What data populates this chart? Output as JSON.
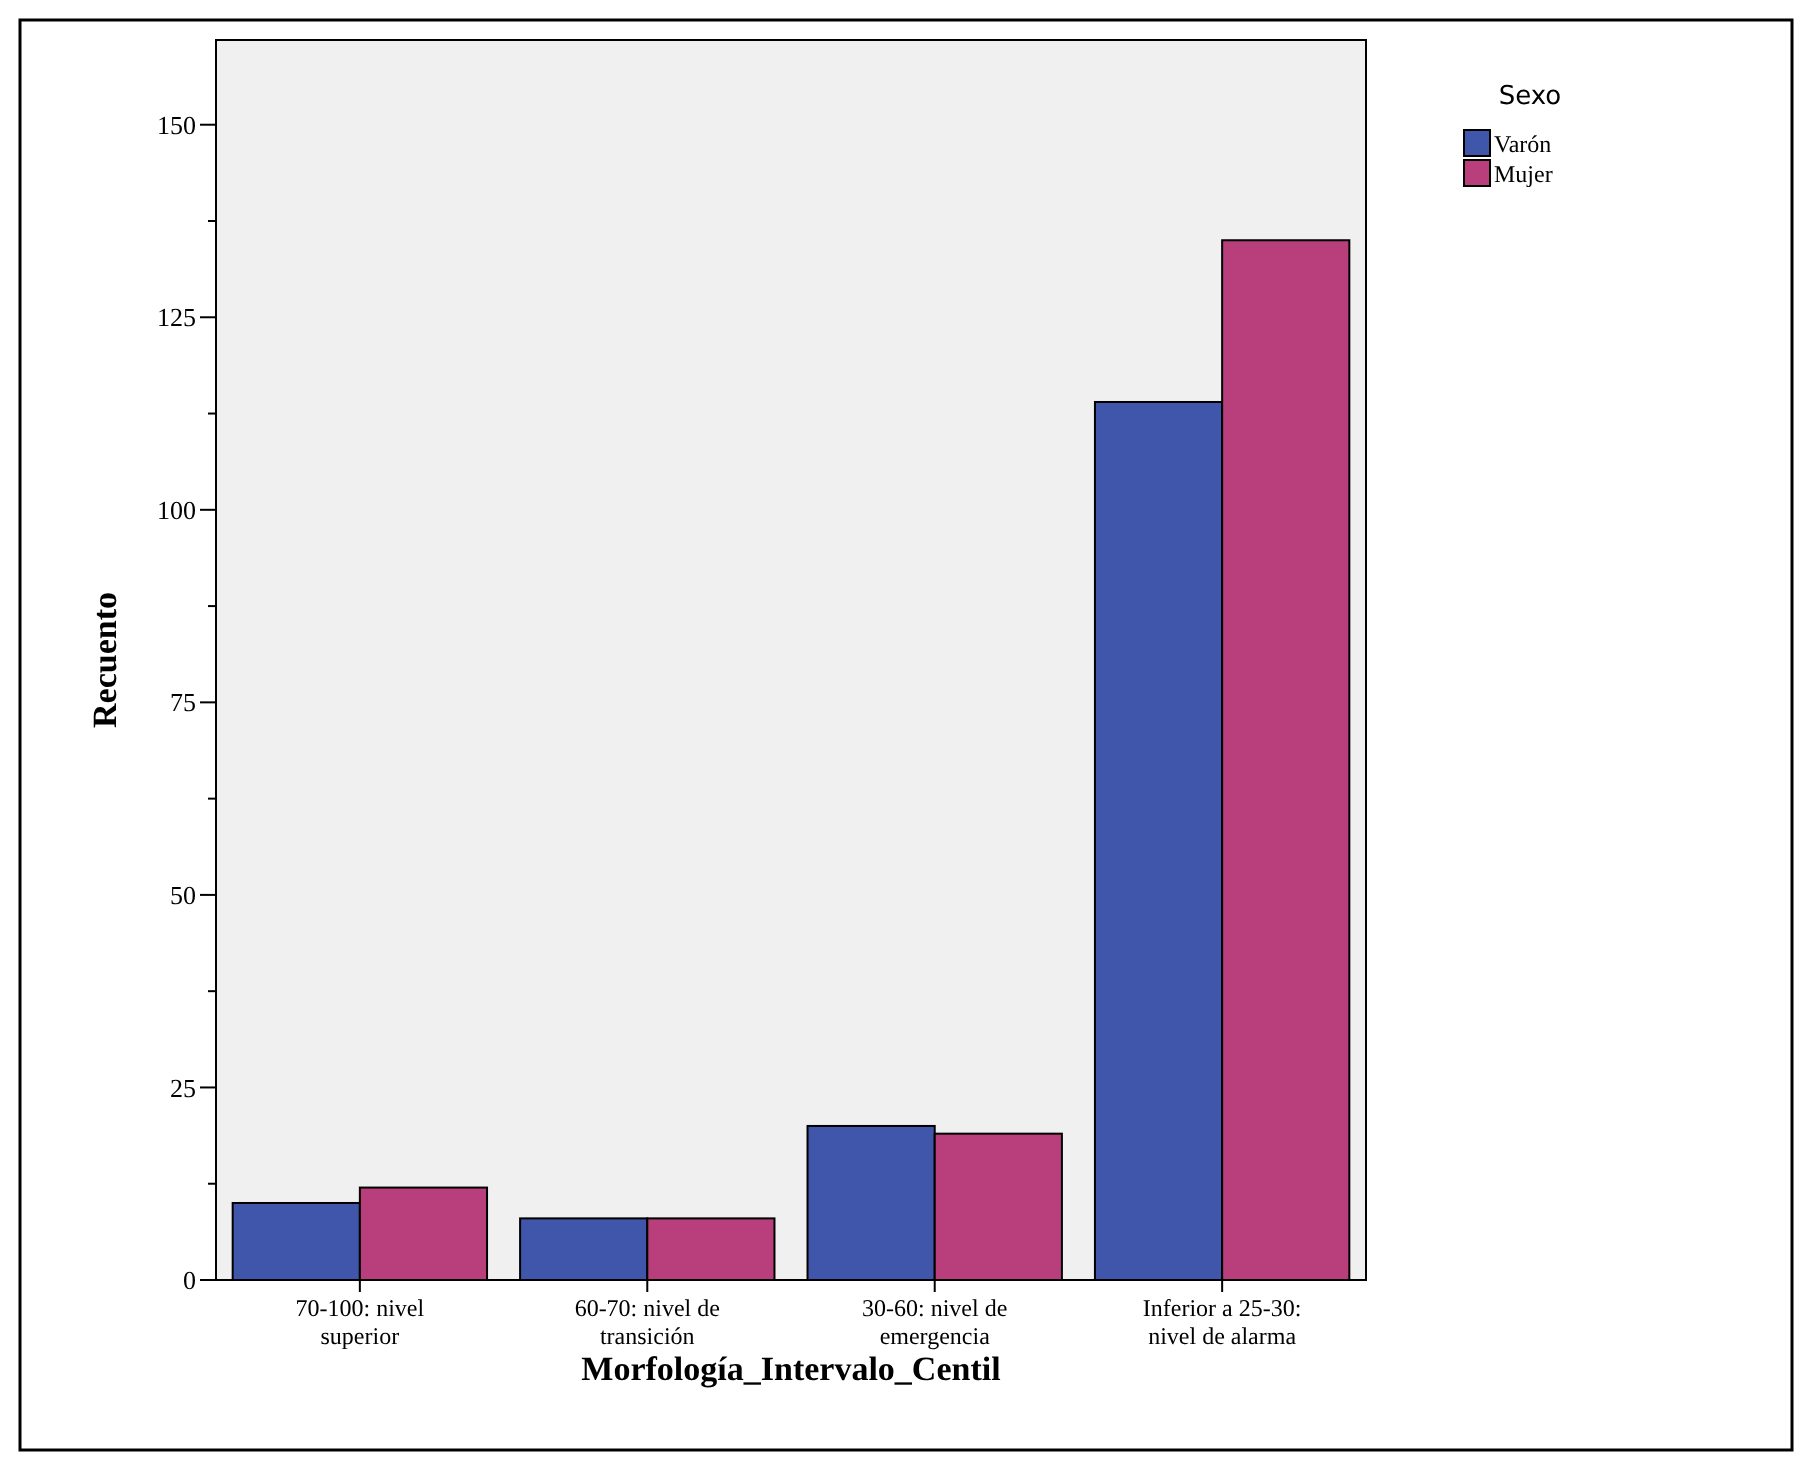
{
  "chart_data": {
    "type": "bar",
    "xlabel": "Morfología_Intervalo_Centil",
    "ylabel": "Recuento",
    "legend_title": "Sexo",
    "categories": [
      "70-100: nivel superior",
      "60-70: nivel de transición",
      "30-60: nivel de emergencia",
      "Inferior a 25-30: nivel de alarma"
    ],
    "series": [
      {
        "name": "Varón",
        "color": "#3f56aa",
        "values": [
          10,
          8,
          20,
          114
        ]
      },
      {
        "name": "Mujer",
        "color": "#b93e7c",
        "values": [
          12,
          8,
          19,
          135
        ]
      }
    ],
    "ylim": [
      0,
      161
    ],
    "yticks": [
      0,
      {
        "value": 12.5,
        "label": null
      },
      25,
      {
        "value": 37.5,
        "label": null
      },
      50,
      {
        "value": 62.5,
        "label": null
      },
      75,
      {
        "value": 87.5,
        "label": null
      },
      100,
      {
        "value": 112.5,
        "label": null
      },
      125,
      {
        "value": 137.5,
        "label": null
      },
      150
    ],
    "legend": "top right",
    "grid": false
  }
}
